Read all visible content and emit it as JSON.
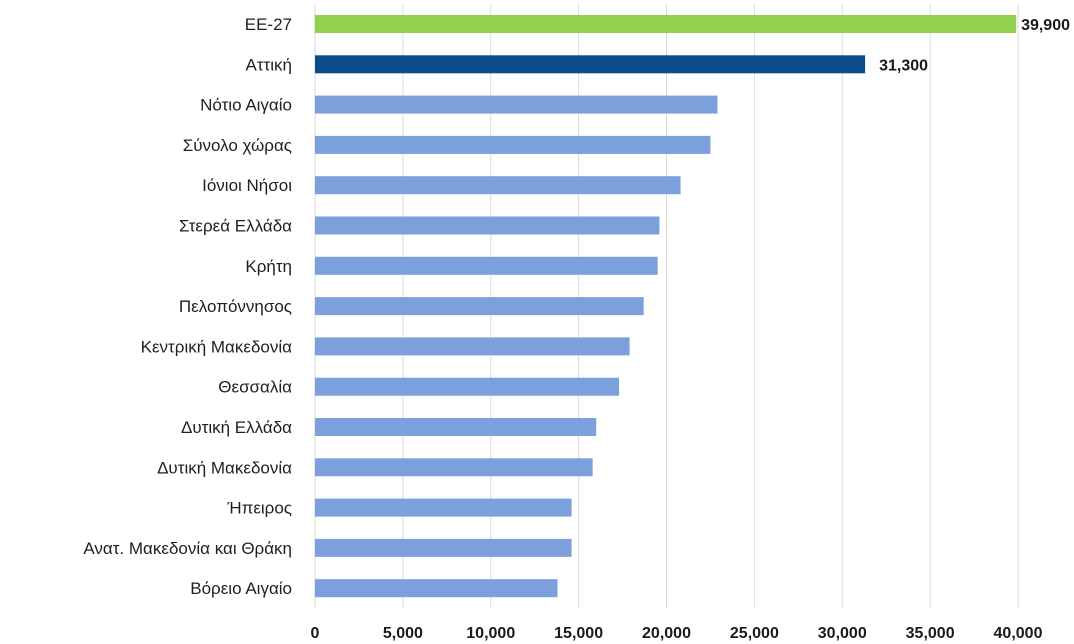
{
  "chart_data": {
    "type": "bar",
    "orientation": "horizontal",
    "categories": [
      "ΕΕ-27",
      "Αττική",
      "Νότιο Αιγαίο",
      "Σύνολο χώρας",
      "Ιόνιοι Νήσοι",
      "Στερεά Ελλάδα",
      "Κρήτη",
      "Πελοπόννησος",
      "Κεντρική Μακεδονία",
      "Θεσσαλία",
      "Δυτική Ελλάδα",
      "Δυτική Μακεδονία",
      "Ήπειρος",
      "Ανατ. Μακεδονία και Θράκη",
      "Βόρειο Αιγαίο"
    ],
    "values": [
      39900,
      31300,
      22900,
      22500,
      20800,
      19600,
      19500,
      18700,
      17900,
      17300,
      16000,
      15800,
      14600,
      14600,
      13800
    ],
    "data_labels": [
      "39,900",
      "31,300",
      null,
      null,
      null,
      null,
      null,
      null,
      null,
      null,
      null,
      null,
      null,
      null,
      null
    ],
    "bar_colors": [
      "#92d050",
      "#0b4a8b",
      "#7ba0dc",
      "#7ba0dc",
      "#7ba0dc",
      "#7ba0dc",
      "#7ba0dc",
      "#7ba0dc",
      "#7ba0dc",
      "#7ba0dc",
      "#7ba0dc",
      "#7ba0dc",
      "#7ba0dc",
      "#7ba0dc",
      "#7ba0dc"
    ],
    "xlim": [
      0,
      40000
    ],
    "x_ticks": [
      0,
      5000,
      10000,
      15000,
      20000,
      25000,
      30000,
      35000,
      40000
    ],
    "x_tick_labels": [
      "0",
      "5,000",
      "10,000",
      "15,000",
      "20,000",
      "25,000",
      "30,000",
      "35,000",
      "40,000"
    ],
    "grid": true,
    "legend": "none",
    "title": "",
    "xlabel": "",
    "ylabel": ""
  }
}
